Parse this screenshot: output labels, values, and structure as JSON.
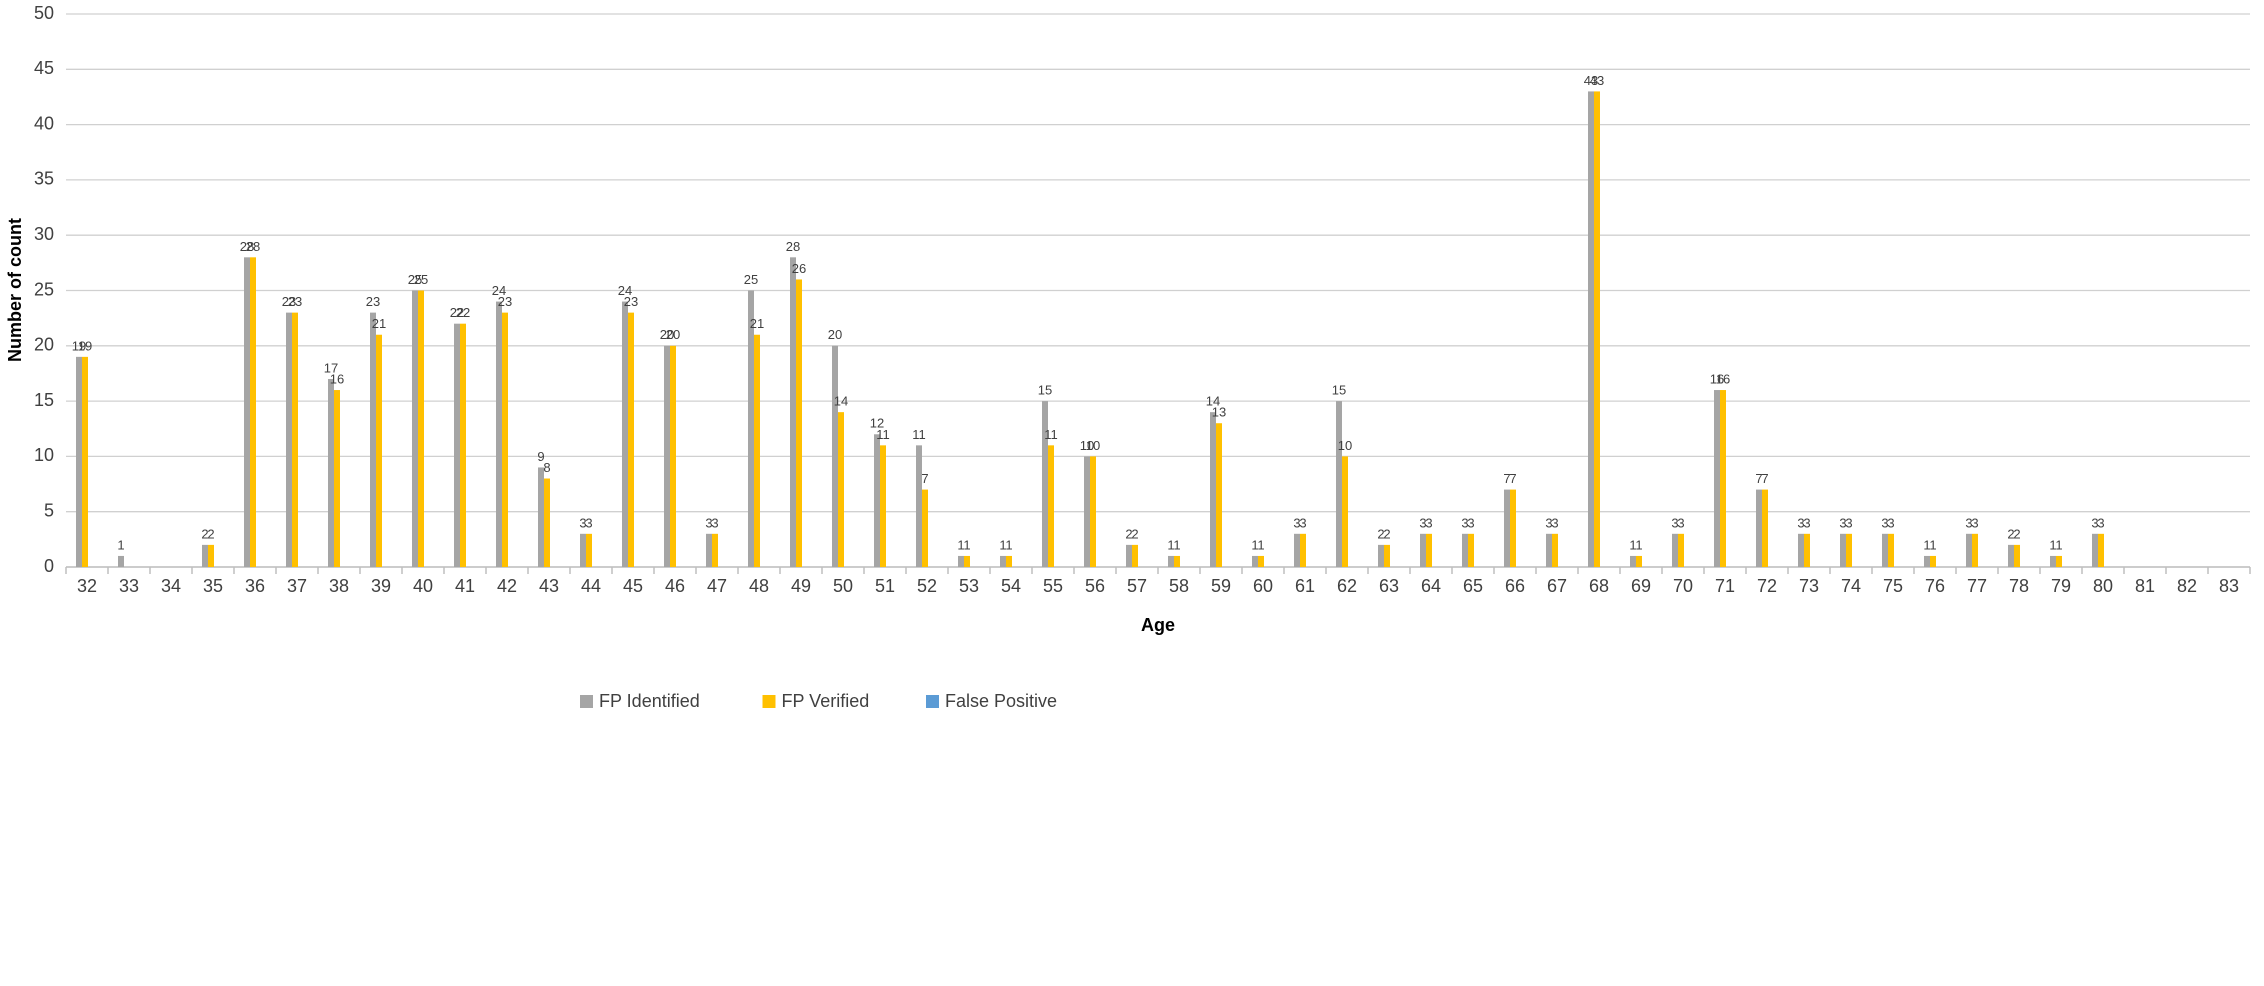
{
  "chart_data": {
    "type": "bar",
    "x_label": "Age",
    "y_label": "Number of count",
    "categories": [
      "32",
      "33",
      "34",
      "35",
      "36",
      "37",
      "38",
      "39",
      "40",
      "41",
      "42",
      "43",
      "44",
      "45",
      "46",
      "47",
      "48",
      "49",
      "50",
      "51",
      "52",
      "53",
      "54",
      "55",
      "56",
      "57",
      "58",
      "59",
      "60",
      "61",
      "62",
      "63",
      "64",
      "65",
      "66",
      "67",
      "68",
      "69",
      "70",
      "71",
      "72",
      "73",
      "74",
      "75",
      "76",
      "77",
      "78",
      "79",
      "80",
      "81",
      "82",
      "83"
    ],
    "series": [
      {
        "name": "FP Identified",
        "color": "#a5a5a5",
        "values": [
          19,
          1,
          0,
          2,
          28,
          23,
          17,
          23,
          25,
          22,
          24,
          9,
          3,
          24,
          20,
          3,
          25,
          28,
          20,
          12,
          11,
          1,
          1,
          15,
          10,
          2,
          1,
          14,
          1,
          3,
          15,
          2,
          3,
          3,
          7,
          3,
          43,
          1,
          3,
          16,
          7,
          3,
          3,
          3,
          1,
          3,
          2,
          1,
          3,
          0,
          0,
          0
        ]
      },
      {
        "name": "FP Verified",
        "color": "#ffc000",
        "values": [
          19,
          0,
          0,
          2,
          28,
          23,
          16,
          21,
          25,
          22,
          23,
          8,
          3,
          23,
          20,
          3,
          21,
          26,
          14,
          11,
          7,
          1,
          1,
          11,
          10,
          2,
          1,
          13,
          1,
          3,
          10,
          2,
          3,
          3,
          7,
          3,
          43,
          1,
          3,
          16,
          7,
          3,
          3,
          3,
          1,
          3,
          2,
          1,
          3,
          0,
          0,
          0
        ]
      },
      {
        "name": "False Positive",
        "color": "#5b9bd5",
        "values": [
          0,
          0,
          0,
          0,
          0,
          0,
          0,
          0,
          0,
          0,
          0,
          0,
          0,
          0,
          0,
          0,
          0,
          0,
          0,
          0,
          0,
          0,
          0,
          0,
          0,
          0,
          0,
          0,
          0,
          0,
          0,
          0,
          0,
          0,
          0,
          0,
          0,
          0,
          0,
          0,
          0,
          0,
          0,
          0,
          0,
          0,
          0,
          0,
          0,
          0,
          0,
          0
        ]
      }
    ],
    "ylim": [
      0,
      50
    ],
    "yticks": [
      0,
      5,
      10,
      15,
      20,
      25,
      30,
      35,
      40,
      45,
      50
    ],
    "grid": true,
    "legend": "bottom"
  }
}
